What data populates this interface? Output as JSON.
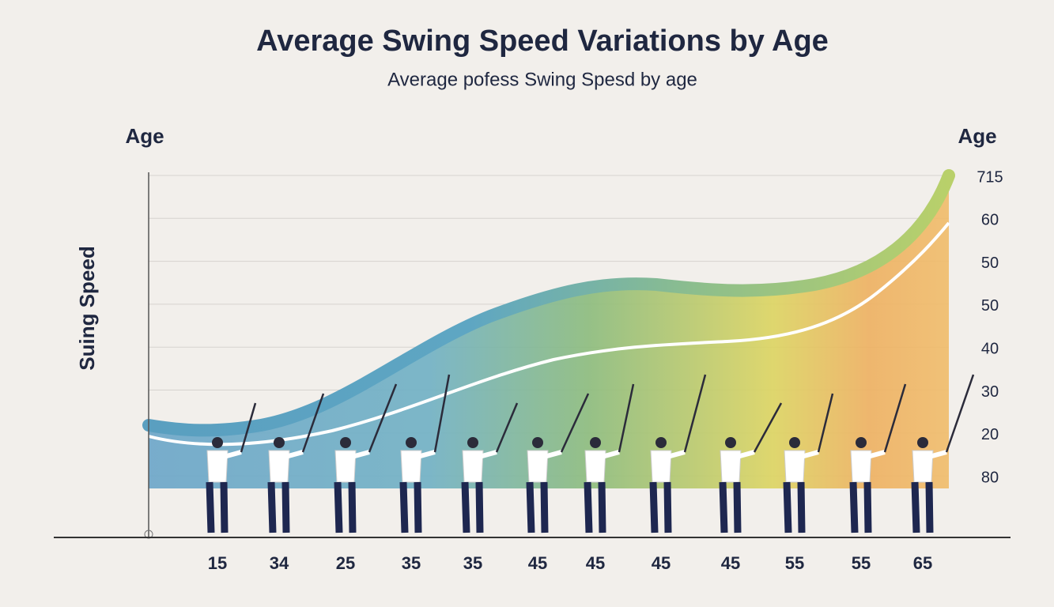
{
  "title": "Average Swing Speed Variations by Age",
  "subtitle": "Average pofess Swing Spesd by age",
  "left_label": "Age",
  "right_label": "Age",
  "y_axis_label": "Suing Speed",
  "right_axis_labels": [
    "715",
    "60",
    "50",
    "50",
    "40",
    "30",
    "20",
    "80"
  ],
  "x_labels": [
    "15",
    "34",
    "25",
    "35",
    "35",
    "45",
    "45",
    "45",
    "45",
    "55",
    "55",
    "65"
  ]
}
